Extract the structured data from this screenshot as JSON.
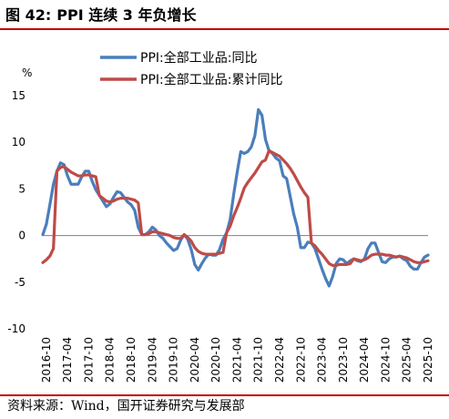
{
  "header": {
    "label": "图 42:",
    "title": "PPI 连续 3 年负增长"
  },
  "source": "资料来源：Wind，国开证券研究与发展部",
  "colors": {
    "accent": "#c00000",
    "series_blue": "#4a7ebb",
    "series_red": "#be4b48"
  },
  "chart_data": {
    "type": "line",
    "title": "",
    "xlabel": "",
    "ylabel": "%",
    "ylim": [
      -10,
      15
    ],
    "yticks": [
      15,
      10,
      5,
      0,
      -5,
      -10
    ],
    "grid": false,
    "legend_position": "top",
    "x_tick_labels": [
      "2016-10",
      "2017-04",
      "2017-10",
      "2018-04",
      "2018-10",
      "2019-04",
      "2019-10",
      "2020-04",
      "2020-10",
      "2021-04",
      "2021-10",
      "2022-04",
      "2022-10",
      "2023-04",
      "2023-10",
      "2024-04",
      "2024-10",
      "2025-04",
      "2025-10"
    ],
    "series": [
      {
        "name": "PPI:全部工业品:同比",
        "color": "#4a7ebb",
        "points": [
          [
            "2016-09",
            0.1
          ],
          [
            "2016-10",
            1.2
          ],
          [
            "2016-11",
            3.3
          ],
          [
            "2016-12",
            5.5
          ],
          [
            "2017-01",
            6.9
          ],
          [
            "2017-02",
            7.8
          ],
          [
            "2017-03",
            7.6
          ],
          [
            "2017-04",
            6.4
          ],
          [
            "2017-05",
            5.5
          ],
          [
            "2017-06",
            5.5
          ],
          [
            "2017-07",
            5.5
          ],
          [
            "2017-08",
            6.3
          ],
          [
            "2017-09",
            6.9
          ],
          [
            "2017-10",
            6.9
          ],
          [
            "2017-11",
            5.8
          ],
          [
            "2017-12",
            4.9
          ],
          [
            "2018-01",
            4.3
          ],
          [
            "2018-02",
            3.7
          ],
          [
            "2018-03",
            3.1
          ],
          [
            "2018-04",
            3.4
          ],
          [
            "2018-05",
            4.1
          ],
          [
            "2018-06",
            4.7
          ],
          [
            "2018-07",
            4.6
          ],
          [
            "2018-08",
            4.1
          ],
          [
            "2018-09",
            3.6
          ],
          [
            "2018-10",
            3.3
          ],
          [
            "2018-11",
            2.7
          ],
          [
            "2018-12",
            0.9
          ],
          [
            "2019-01",
            0.1
          ],
          [
            "2019-02",
            0.1
          ],
          [
            "2019-03",
            0.4
          ],
          [
            "2019-04",
            0.9
          ],
          [
            "2019-05",
            0.6
          ],
          [
            "2019-06",
            0.0
          ],
          [
            "2019-07",
            -0.3
          ],
          [
            "2019-08",
            -0.8
          ],
          [
            "2019-09",
            -1.2
          ],
          [
            "2019-10",
            -1.6
          ],
          [
            "2019-11",
            -1.4
          ],
          [
            "2019-12",
            -0.5
          ],
          [
            "2020-01",
            0.1
          ],
          [
            "2020-02",
            -0.4
          ],
          [
            "2020-03",
            -1.5
          ],
          [
            "2020-04",
            -3.1
          ],
          [
            "2020-05",
            -3.7
          ],
          [
            "2020-06",
            -3.0
          ],
          [
            "2020-07",
            -2.4
          ],
          [
            "2020-08",
            -2.0
          ],
          [
            "2020-09",
            -2.1
          ],
          [
            "2020-10",
            -2.1
          ],
          [
            "2020-11",
            -1.5
          ],
          [
            "2020-12",
            -0.4
          ],
          [
            "2021-01",
            0.3
          ],
          [
            "2021-02",
            1.7
          ],
          [
            "2021-03",
            4.4
          ],
          [
            "2021-04",
            6.8
          ],
          [
            "2021-05",
            9.0
          ],
          [
            "2021-06",
            8.8
          ],
          [
            "2021-07",
            9.0
          ],
          [
            "2021-08",
            9.5
          ],
          [
            "2021-09",
            10.7
          ],
          [
            "2021-10",
            13.5
          ],
          [
            "2021-11",
            12.9
          ],
          [
            "2021-12",
            10.3
          ],
          [
            "2022-01",
            9.1
          ],
          [
            "2022-02",
            8.8
          ],
          [
            "2022-03",
            8.3
          ],
          [
            "2022-04",
            8.0
          ],
          [
            "2022-05",
            6.4
          ],
          [
            "2022-06",
            6.1
          ],
          [
            "2022-07",
            4.2
          ],
          [
            "2022-08",
            2.3
          ],
          [
            "2022-09",
            0.9
          ],
          [
            "2022-10",
            -1.3
          ],
          [
            "2022-11",
            -1.3
          ],
          [
            "2022-12",
            -0.7
          ],
          [
            "2023-01",
            -0.8
          ],
          [
            "2023-02",
            -1.4
          ],
          [
            "2023-03",
            -2.5
          ],
          [
            "2023-04",
            -3.6
          ],
          [
            "2023-05",
            -4.6
          ],
          [
            "2023-06",
            -5.4
          ],
          [
            "2023-07",
            -4.4
          ],
          [
            "2023-08",
            -3.0
          ],
          [
            "2023-09",
            -2.5
          ],
          [
            "2023-10",
            -2.6
          ],
          [
            "2023-11",
            -3.0
          ],
          [
            "2023-12",
            -2.7
          ],
          [
            "2024-01",
            -2.5
          ],
          [
            "2024-02",
            -2.7
          ],
          [
            "2024-03",
            -2.8
          ],
          [
            "2024-04",
            -2.5
          ],
          [
            "2024-05",
            -1.4
          ],
          [
            "2024-06",
            -0.8
          ],
          [
            "2024-07",
            -0.8
          ],
          [
            "2024-08",
            -1.8
          ],
          [
            "2024-09",
            -2.8
          ],
          [
            "2024-10",
            -2.9
          ],
          [
            "2024-11",
            -2.5
          ],
          [
            "2024-12",
            -2.3
          ],
          [
            "2025-01",
            -2.3
          ],
          [
            "2025-02",
            -2.2
          ],
          [
            "2025-03",
            -2.5
          ],
          [
            "2025-04",
            -2.7
          ],
          [
            "2025-05",
            -3.3
          ],
          [
            "2025-06",
            -3.6
          ],
          [
            "2025-07",
            -3.6
          ],
          [
            "2025-08",
            -2.9
          ],
          [
            "2025-09",
            -2.3
          ],
          [
            "2025-10",
            -2.1
          ]
        ]
      },
      {
        "name": "PPI:全部工业品:累计同比",
        "color": "#be4b48",
        "points": [
          [
            "2016-09",
            -2.9
          ],
          [
            "2016-10",
            -2.6
          ],
          [
            "2016-11",
            -2.2
          ],
          [
            "2016-12",
            -1.4
          ],
          [
            "2017-01",
            6.9
          ],
          [
            "2017-02",
            7.3
          ],
          [
            "2017-03",
            7.4
          ],
          [
            "2017-04",
            7.1
          ],
          [
            "2017-05",
            6.8
          ],
          [
            "2017-06",
            6.6
          ],
          [
            "2017-07",
            6.4
          ],
          [
            "2017-08",
            6.4
          ],
          [
            "2017-09",
            6.5
          ],
          [
            "2017-10",
            6.5
          ],
          [
            "2017-11",
            6.4
          ],
          [
            "2017-12",
            6.3
          ],
          [
            "2018-01",
            4.3
          ],
          [
            "2018-02",
            4.0
          ],
          [
            "2018-03",
            3.7
          ],
          [
            "2018-04",
            3.6
          ],
          [
            "2018-05",
            3.7
          ],
          [
            "2018-06",
            3.9
          ],
          [
            "2018-07",
            4.0
          ],
          [
            "2018-08",
            4.0
          ],
          [
            "2018-09",
            4.0
          ],
          [
            "2018-10",
            3.9
          ],
          [
            "2018-11",
            3.8
          ],
          [
            "2018-12",
            3.5
          ],
          [
            "2019-01",
            0.1
          ],
          [
            "2019-02",
            0.1
          ],
          [
            "2019-03",
            0.2
          ],
          [
            "2019-04",
            0.4
          ],
          [
            "2019-05",
            0.4
          ],
          [
            "2019-06",
            0.3
          ],
          [
            "2019-07",
            0.2
          ],
          [
            "2019-08",
            0.1
          ],
          [
            "2019-09",
            -0.0
          ],
          [
            "2019-10",
            -0.2
          ],
          [
            "2019-11",
            -0.3
          ],
          [
            "2019-12",
            -0.3
          ],
          [
            "2020-01",
            0.1
          ],
          [
            "2020-02",
            -0.2
          ],
          [
            "2020-03",
            -0.6
          ],
          [
            "2020-04",
            -1.3
          ],
          [
            "2020-05",
            -1.7
          ],
          [
            "2020-06",
            -1.9
          ],
          [
            "2020-07",
            -2.0
          ],
          [
            "2020-08",
            -2.0
          ],
          [
            "2020-09",
            -2.0
          ],
          [
            "2020-10",
            -2.0
          ],
          [
            "2020-11",
            -1.9
          ],
          [
            "2020-12",
            -1.8
          ],
          [
            "2021-01",
            0.3
          ],
          [
            "2021-02",
            1.0
          ],
          [
            "2021-03",
            2.1
          ],
          [
            "2021-04",
            3.0
          ],
          [
            "2021-05",
            4.0
          ],
          [
            "2021-06",
            5.1
          ],
          [
            "2021-07",
            5.7
          ],
          [
            "2021-08",
            6.2
          ],
          [
            "2021-09",
            6.7
          ],
          [
            "2021-10",
            7.3
          ],
          [
            "2021-11",
            7.9
          ],
          [
            "2021-12",
            8.1
          ],
          [
            "2022-01",
            9.1
          ],
          [
            "2022-02",
            8.9
          ],
          [
            "2022-03",
            8.7
          ],
          [
            "2022-04",
            8.5
          ],
          [
            "2022-05",
            8.1
          ],
          [
            "2022-06",
            7.7
          ],
          [
            "2022-07",
            7.2
          ],
          [
            "2022-08",
            6.6
          ],
          [
            "2022-09",
            5.9
          ],
          [
            "2022-10",
            5.2
          ],
          [
            "2022-11",
            4.6
          ],
          [
            "2022-12",
            4.1
          ],
          [
            "2023-01",
            -0.8
          ],
          [
            "2023-02",
            -1.1
          ],
          [
            "2023-03",
            -1.6
          ],
          [
            "2023-04",
            -2.0
          ],
          [
            "2023-05",
            -2.5
          ],
          [
            "2023-06",
            -3.0
          ],
          [
            "2023-07",
            -3.2
          ],
          [
            "2023-08",
            -3.2
          ],
          [
            "2023-09",
            -3.1
          ],
          [
            "2023-10",
            -3.1
          ],
          [
            "2023-11",
            -3.1
          ],
          [
            "2023-12",
            -3.0
          ],
          [
            "2024-01",
            -2.5
          ],
          [
            "2024-02",
            -2.6
          ],
          [
            "2024-03",
            -2.7
          ],
          [
            "2024-04",
            -2.6
          ],
          [
            "2024-05",
            -2.4
          ],
          [
            "2024-06",
            -2.1
          ],
          [
            "2024-07",
            -2.0
          ],
          [
            "2024-08",
            -2.0
          ],
          [
            "2024-09",
            -2.0
          ],
          [
            "2024-10",
            -2.1
          ],
          [
            "2024-11",
            -2.1
          ],
          [
            "2024-12",
            -2.2
          ],
          [
            "2025-01",
            -2.3
          ],
          [
            "2025-02",
            -2.2
          ],
          [
            "2025-03",
            -2.3
          ],
          [
            "2025-04",
            -2.4
          ],
          [
            "2025-05",
            -2.6
          ],
          [
            "2025-06",
            -2.8
          ],
          [
            "2025-07",
            -2.9
          ],
          [
            "2025-08",
            -2.9
          ],
          [
            "2025-09",
            -2.8
          ],
          [
            "2025-10",
            -2.7
          ]
        ]
      }
    ]
  }
}
